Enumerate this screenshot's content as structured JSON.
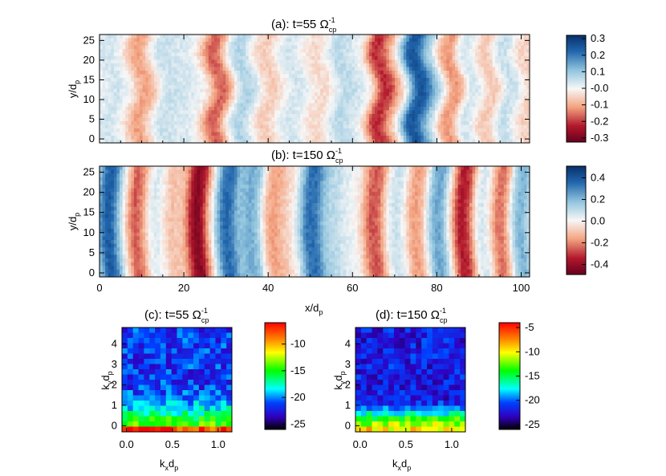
{
  "chart_data": [
    {
      "type": "heatmap",
      "id": "a",
      "title": {
        "main": "(a): t=55 Ω",
        "sup": "-1",
        "sub": "cp"
      },
      "ylabel": {
        "main": "y/d",
        "sub": "p"
      },
      "xlim": [
        0,
        102
      ],
      "ylim": [
        -1,
        26.5
      ],
      "yticks": [
        "0",
        "5",
        "10",
        "15",
        "20",
        "25"
      ],
      "colorbar": {
        "range": [
          -0.32,
          0.32
        ],
        "ticks": [
          "0.3",
          "0.2",
          "0.1",
          "-0.0",
          "-0.1",
          "-0.2",
          "-0.3"
        ],
        "tick_values": [
          0.3,
          0.2,
          0.1,
          0.0,
          -0.1,
          -0.2,
          -0.3
        ],
        "colormap": "red-white-blue"
      },
      "bands": [
        {
          "x": 3,
          "v": 0.04
        },
        {
          "x": 10,
          "v": -0.11
        },
        {
          "x": 16,
          "v": 0.05
        },
        {
          "x": 21,
          "v": 0.03
        },
        {
          "x": 28,
          "v": -0.17
        },
        {
          "x": 34,
          "v": 0.08
        },
        {
          "x": 40,
          "v": -0.06
        },
        {
          "x": 46,
          "v": 0.04
        },
        {
          "x": 52,
          "v": -0.04
        },
        {
          "x": 58,
          "v": 0.07
        },
        {
          "x": 62,
          "v": 0.02
        },
        {
          "x": 67,
          "v": -0.24
        },
        {
          "x": 71,
          "v": -0.05
        },
        {
          "x": 75,
          "v": 0.31
        },
        {
          "x": 79,
          "v": 0.1
        },
        {
          "x": 83,
          "v": -0.15
        },
        {
          "x": 88,
          "v": 0.06
        },
        {
          "x": 92,
          "v": -0.08
        },
        {
          "x": 97,
          "v": 0.07
        },
        {
          "x": 101,
          "v": -0.06
        }
      ]
    },
    {
      "type": "heatmap",
      "id": "b",
      "title": {
        "main": "(b): t=150 Ω",
        "sup": "-1",
        "sub": "cp"
      },
      "ylabel": {
        "main": "y/d",
        "sub": "p"
      },
      "xlabel": {
        "main": "x/d",
        "sub": "p"
      },
      "xlim": [
        0,
        102
      ],
      "ylim": [
        -1,
        26.5
      ],
      "xticks": [
        "0",
        "20",
        "40",
        "60",
        "80",
        "100"
      ],
      "yticks": [
        "0",
        "5",
        "10",
        "15",
        "20",
        "25"
      ],
      "colorbar": {
        "range": [
          -0.5,
          0.5
        ],
        "ticks": [
          "0.4",
          "0.2",
          "0.0",
          "-0.2",
          "-0.4"
        ],
        "tick_values": [
          0.4,
          0.2,
          0.0,
          -0.2,
          -0.4
        ],
        "colormap": "red-white-blue"
      },
      "bands": [
        {
          "x": 3,
          "v": 0.38
        },
        {
          "x": 10,
          "v": -0.3
        },
        {
          "x": 14,
          "v": 0.15
        },
        {
          "x": 17,
          "v": -0.15
        },
        {
          "x": 24,
          "v": -0.44
        },
        {
          "x": 31,
          "v": 0.35
        },
        {
          "x": 37,
          "v": 0.22
        },
        {
          "x": 42,
          "v": -0.2
        },
        {
          "x": 46,
          "v": -0.05
        },
        {
          "x": 51,
          "v": 0.36
        },
        {
          "x": 56,
          "v": 0.1
        },
        {
          "x": 61,
          "v": 0.02
        },
        {
          "x": 66,
          "v": -0.3
        },
        {
          "x": 71,
          "v": 0.1
        },
        {
          "x": 76,
          "v": -0.2
        },
        {
          "x": 81,
          "v": 0.25
        },
        {
          "x": 87,
          "v": -0.38
        },
        {
          "x": 92,
          "v": 0.12
        },
        {
          "x": 96,
          "v": -0.35
        },
        {
          "x": 100,
          "v": 0.25
        }
      ]
    },
    {
      "type": "heatmap",
      "id": "c",
      "title": {
        "main": "(c): t=55 Ω",
        "sup": "-1",
        "sub": "cp"
      },
      "xlabel": {
        "main": "k",
        "mid": "x",
        "after": "d",
        "sub": "p"
      },
      "ylabel": {
        "main": "k",
        "mid": "y",
        "after": "d",
        "sub": "p"
      },
      "xlim": [
        -0.05,
        1.15
      ],
      "ylim": [
        -0.3,
        4.8
      ],
      "xticks": [
        "0.0",
        "0.5",
        "1.0"
      ],
      "yticks": [
        "0",
        "1",
        "2",
        "3",
        "4"
      ],
      "colorbar": {
        "range": [
          -26,
          -6
        ],
        "ticks": [
          "-10",
          "-15",
          "-20",
          "-25"
        ],
        "tick_values": [
          -10,
          -15,
          -20,
          -25
        ],
        "colormap": "rainbow"
      },
      "profile": [
        -6.5,
        -14,
        -15.5,
        -17,
        -18.5,
        -19.5,
        -20.5,
        -21
      ],
      "background": -21.5
    },
    {
      "type": "heatmap",
      "id": "d",
      "title": {
        "main": "(d): t=150 Ω",
        "sup": "-1",
        "sub": "cp"
      },
      "xlabel": {
        "main": "k",
        "mid": "x",
        "after": "d",
        "sub": "p"
      },
      "ylabel": {
        "main": "k",
        "mid": "y",
        "after": "d",
        "sub": "p"
      },
      "xlim": [
        -0.05,
        1.15
      ],
      "ylim": [
        -0.3,
        4.8
      ],
      "xticks": [
        "0.0",
        "0.5",
        "1.0"
      ],
      "yticks": [
        "0",
        "1",
        "2",
        "3",
        "4"
      ],
      "colorbar": {
        "range": [
          -26,
          -4
        ],
        "ticks": [
          "-5",
          "-10",
          "-15",
          "-20",
          "-25"
        ],
        "tick_values": [
          -5,
          -10,
          -15,
          -20,
          -25
        ],
        "colormap": "rainbow"
      },
      "profile": [
        -9,
        -11.5,
        -14,
        -17,
        -20,
        -21.5,
        -22,
        -22
      ],
      "background": -22
    }
  ]
}
